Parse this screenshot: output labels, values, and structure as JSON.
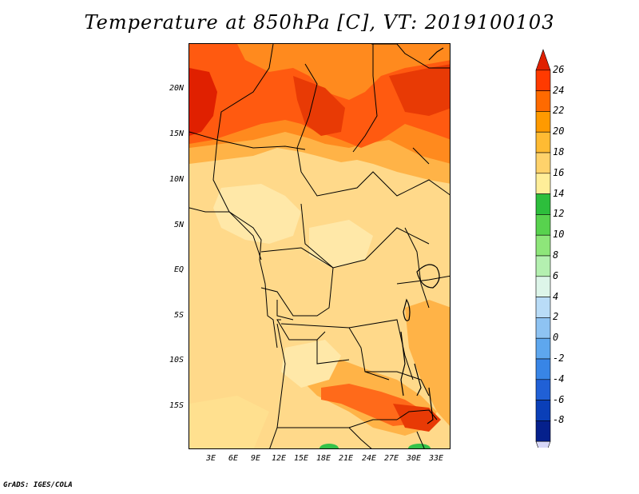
{
  "title": "Temperature at 850hPa [C], VT: 2019100103",
  "credit": "GrADS: IGES/COLA",
  "map": {
    "y_ticks": [
      "20N",
      "15N",
      "10N",
      "5N",
      "EQ",
      "5S",
      "10S",
      "15S"
    ],
    "x_ticks": [
      "3E",
      "6E",
      "9E",
      "12E",
      "15E",
      "18E",
      "21E",
      "24E",
      "27E",
      "30E",
      "33E"
    ]
  },
  "colorbar": {
    "labels": [
      "26",
      "24",
      "22",
      "20",
      "18",
      "16",
      "14",
      "12",
      "10",
      "8",
      "6",
      "4",
      "2",
      "0",
      "-2",
      "-4",
      "-6",
      "-8"
    ],
    "colors": [
      "#e02000",
      "#ff3a00",
      "#ff6a00",
      "#ff9a00",
      "#ffbb33",
      "#ffd26b",
      "#ffee99",
      "#2dbe3c",
      "#58d24e",
      "#8ee67a",
      "#b4f0b0",
      "#ddf5e9",
      "#b9dcf7",
      "#8ec3f2",
      "#5ea7ee",
      "#3885e6",
      "#2060d6",
      "#0a3fb8",
      "#05208c",
      "#d8d8f8"
    ]
  }
}
